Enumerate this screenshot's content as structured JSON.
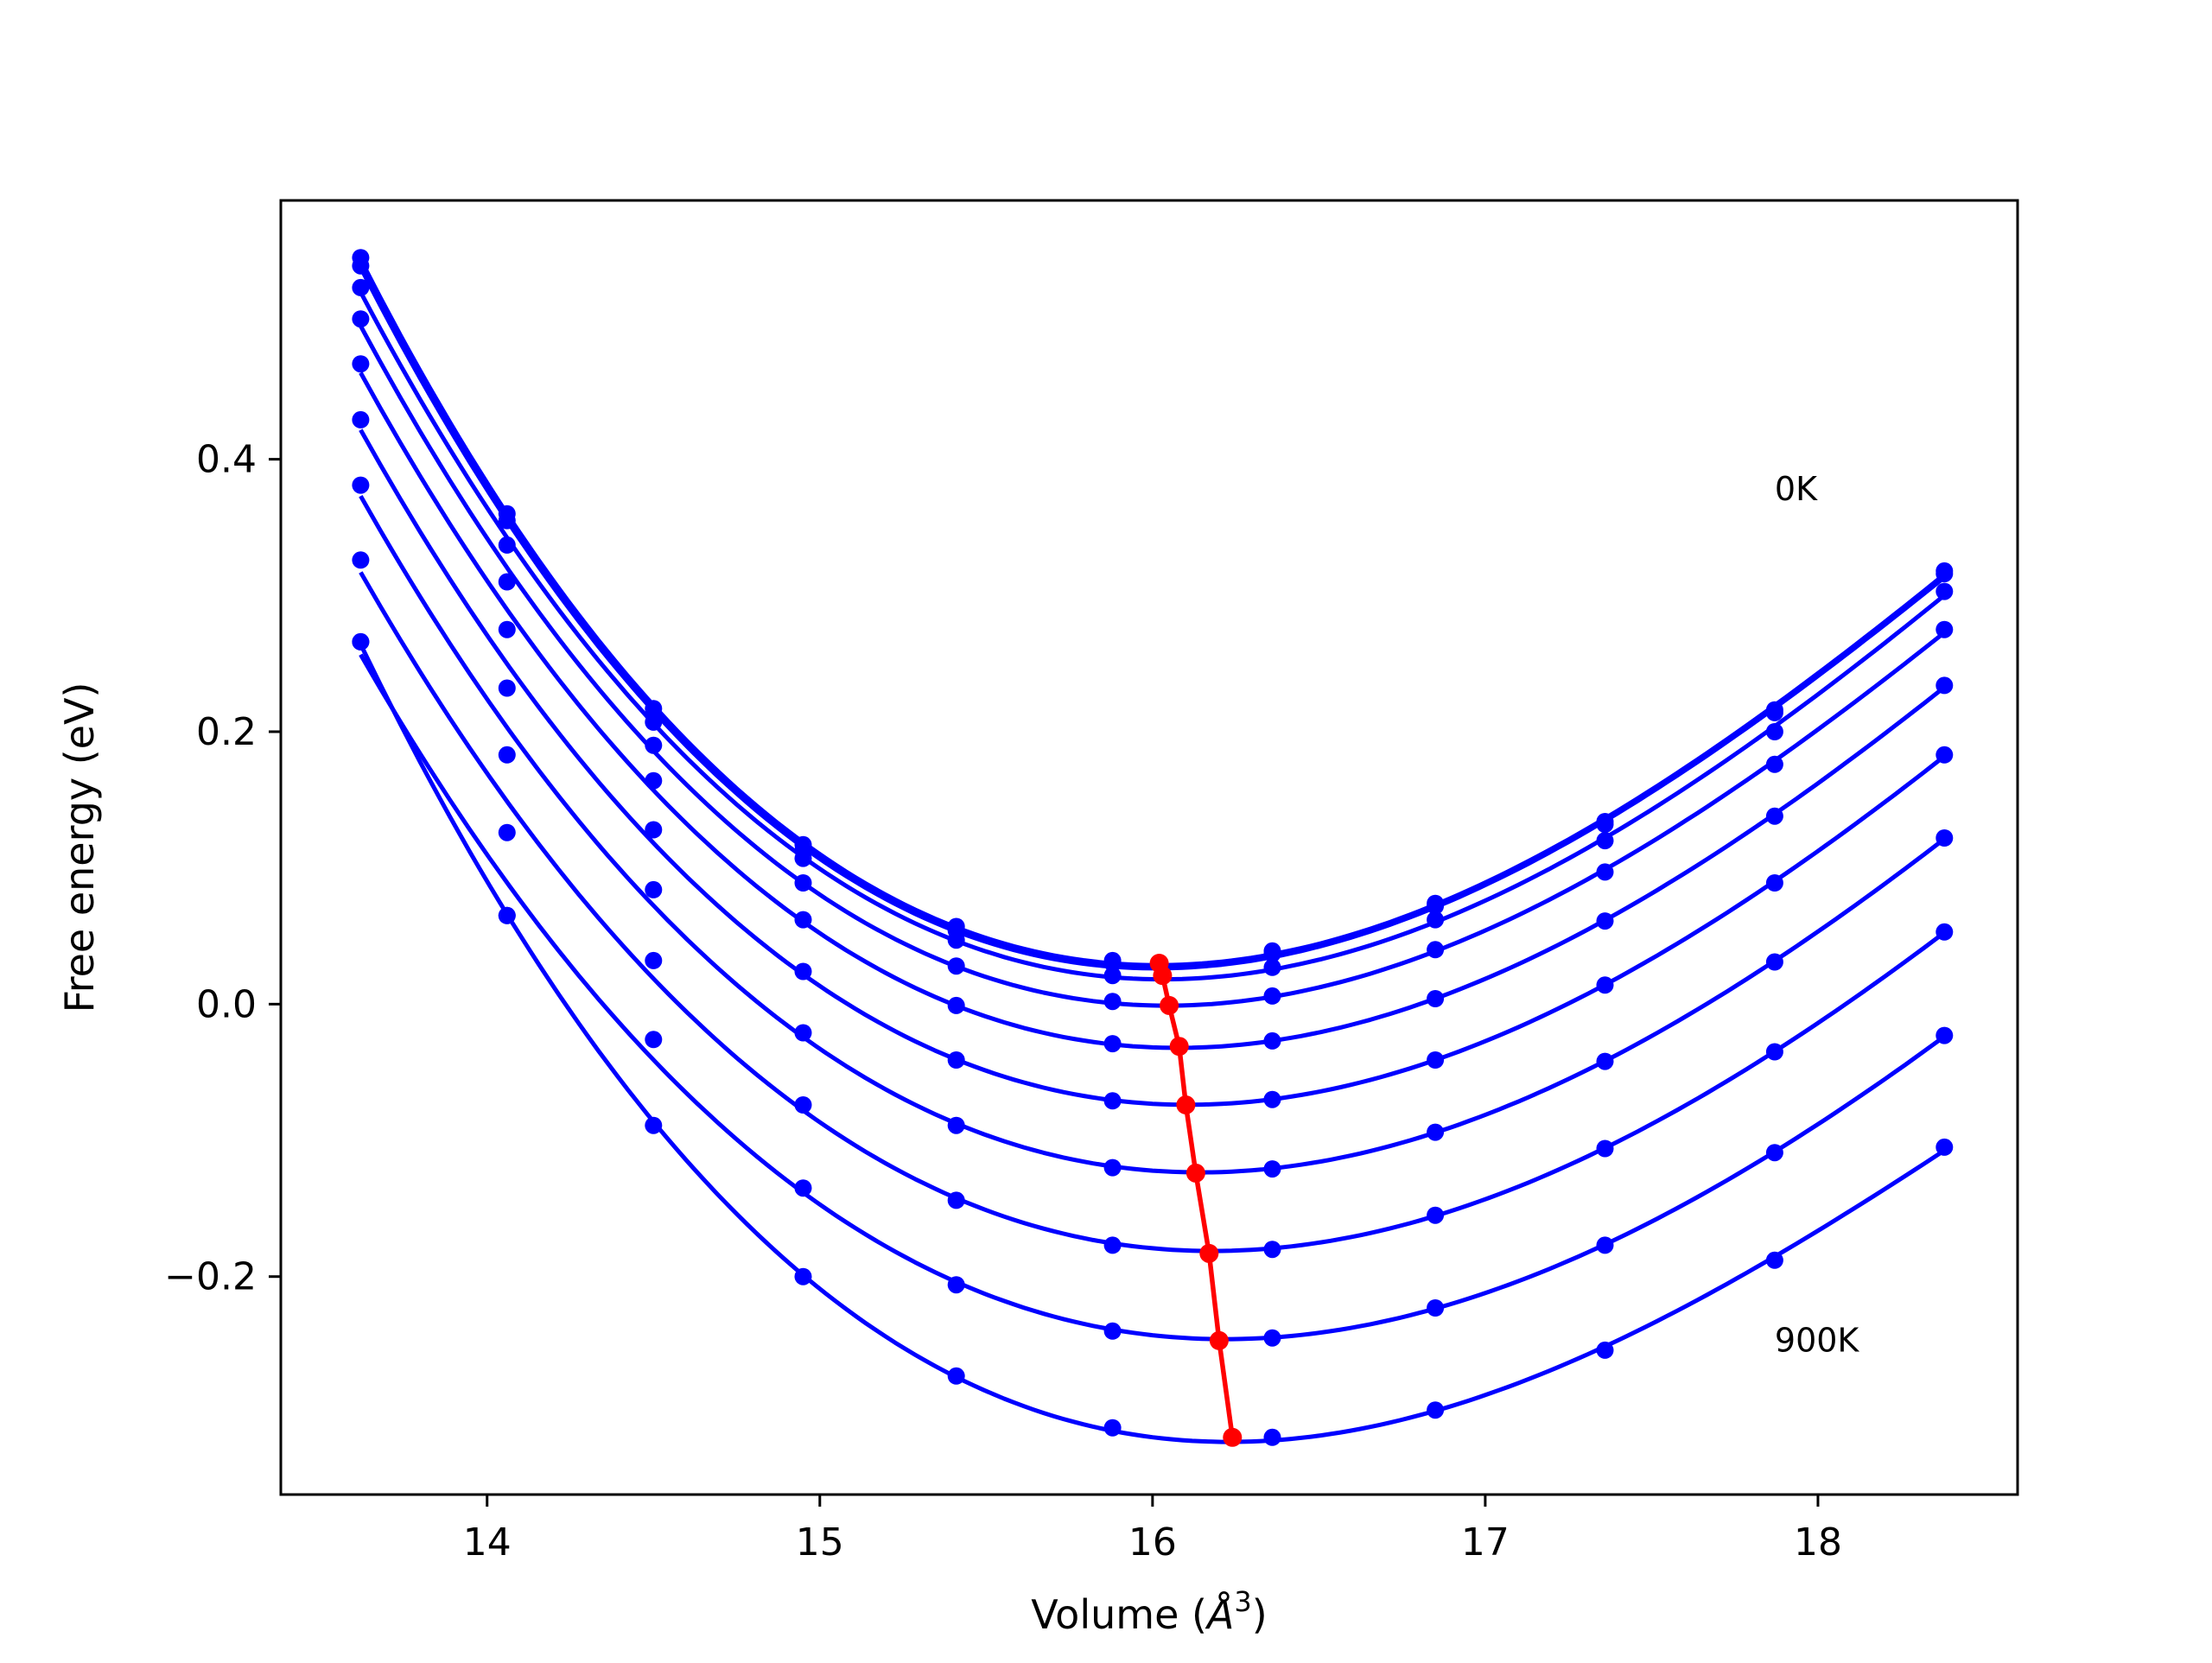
{
  "chart_data": {
    "type": "line",
    "xlabel_prefix": "Volume (",
    "xlabel_symbol": "Å",
    "xlabel_sup": "3",
    "xlabel_suffix": ")",
    "ylabel": "Free energy (eV)",
    "xlim": [
      13.38,
      18.6
    ],
    "ylim": [
      -0.36,
      0.59
    ],
    "xticks": [
      14,
      15,
      16,
      17,
      18
    ],
    "xtick_labels": [
      "14",
      "15",
      "16",
      "17",
      "18"
    ],
    "yticks": [
      -0.2,
      0.0,
      0.2,
      0.4
    ],
    "ytick_labels": [
      "−0.2",
      "0.0",
      "0.2",
      "0.4"
    ],
    "grid": false,
    "legend": "none",
    "annotations": [
      {
        "text": "0K",
        "x": 17.87,
        "y": 0.37
      },
      {
        "text": "900K",
        "x": 17.87,
        "y": -0.255
      }
    ],
    "curve_color": "#0000ff",
    "min_color": "#ff0000",
    "x": [
      13.62,
      14.06,
      14.5,
      14.95,
      15.41,
      15.88,
      16.36,
      16.85,
      17.36,
      17.87,
      18.38
    ],
    "series": [
      {
        "values": [
          0.548,
          0.36,
          0.217,
          0.117,
          0.057,
          0.032,
          0.039,
          0.074,
          0.134,
          0.216,
          0.318
        ]
      },
      {
        "values": [
          0.542,
          0.355,
          0.213,
          0.113,
          0.054,
          0.03,
          0.037,
          0.072,
          0.132,
          0.214,
          0.316
        ]
      },
      {
        "values": [
          0.526,
          0.337,
          0.207,
          0.107,
          0.047,
          0.021,
          0.027,
          0.062,
          0.12,
          0.2,
          0.303
        ]
      },
      {
        "values": [
          0.503,
          0.31,
          0.19,
          0.089,
          0.028,
          0.002,
          0.006,
          0.04,
          0.097,
          0.176,
          0.275
        ]
      },
      {
        "values": [
          0.47,
          0.275,
          0.164,
          0.062,
          -0.001,
          -0.029,
          -0.027,
          0.004,
          0.061,
          0.138,
          0.234
        ]
      },
      {
        "values": [
          0.429,
          0.232,
          0.128,
          0.024,
          -0.041,
          -0.071,
          -0.07,
          -0.041,
          0.014,
          0.089,
          0.183
        ]
      },
      {
        "values": [
          0.381,
          0.183,
          0.084,
          -0.021,
          -0.089,
          -0.12,
          -0.121,
          -0.094,
          -0.042,
          0.031,
          0.122
        ]
      },
      {
        "values": [
          0.326,
          0.126,
          0.032,
          -0.074,
          -0.144,
          -0.177,
          -0.18,
          -0.155,
          -0.106,
          -0.035,
          0.053
        ]
      },
      {
        "values": [
          0.266,
          0.065,
          -0.026,
          -0.135,
          -0.206,
          -0.24,
          -0.245,
          -0.223,
          -0.177,
          -0.109,
          -0.023
        ]
      },
      {
        "values": [
          0.266,
          0.065,
          -0.089,
          -0.2,
          -0.273,
          -0.311,
          -0.318,
          -0.298,
          -0.254,
          -0.188,
          -0.105
        ]
      }
    ],
    "min_curve": {
      "x": [
        16.02,
        16.03,
        16.05,
        16.08,
        16.1,
        16.13,
        16.17,
        16.2,
        16.24
      ],
      "y": [
        0.03,
        0.021,
        -0.001,
        -0.031,
        -0.074,
        -0.124,
        -0.183,
        -0.247,
        -0.318
      ]
    }
  }
}
